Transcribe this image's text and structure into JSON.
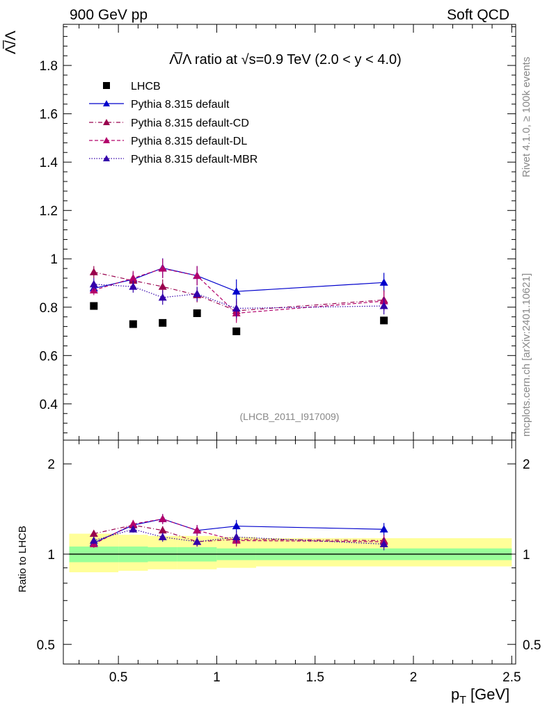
{
  "header": {
    "left": "900 GeV pp",
    "right": "Soft QCD"
  },
  "side_text": {
    "rivet": "Rivet 4.1.0, ≥ 100k events",
    "mcplots": "mcplots.cern.ch [arXiv:2401.10621]"
  },
  "colors": {
    "lhcb": "#000000",
    "default": "#0000cc",
    "cd": "#99004d",
    "dl": "#b3006b",
    "mbr": "#3300aa",
    "band_inner": "#99ff99",
    "band_outer": "#ffff99"
  },
  "chart_data": [
    {
      "type": "scatter",
      "title_prefix": "Λ̅/Λ ratio at √s=0.9 TeV (2.0 < y < 4.0)",
      "ylabel": "Λ̅/Λ",
      "watermark": "(LHCB_2011_I917009)",
      "xlim": [
        0.22,
        2.52
      ],
      "ylim": [
        0.25,
        1.97
      ],
      "yticks": [
        0.4,
        0.6,
        0.8,
        1.0,
        1.2,
        1.4,
        1.6,
        1.8
      ],
      "ytick_labels": [
        "0.4",
        "0.6",
        "0.8",
        "1",
        "1.2",
        "1.4",
        "1.6",
        "1.8"
      ],
      "x": [
        0.375,
        0.575,
        0.725,
        0.9,
        1.1,
        1.85
      ],
      "series": [
        {
          "name": "LHCB",
          "style": "data",
          "values": [
            0.805,
            0.73,
            0.735,
            0.775,
            0.7,
            0.745
          ]
        },
        {
          "name": "Pythia 8.315 default",
          "style": "solid",
          "values": [
            0.878,
            0.915,
            0.962,
            0.93,
            0.865,
            0.902
          ],
          "errors": [
            0.02,
            0.03,
            0.04,
            0.04,
            0.05,
            0.04
          ]
        },
        {
          "name": "Pythia 8.315 default-CD",
          "style": "dashdot",
          "values": [
            0.945,
            0.91,
            0.885,
            0.85,
            0.785,
            0.83
          ],
          "errors": [
            0.025,
            0.03,
            0.03,
            0.03,
            0.04,
            0.04
          ]
        },
        {
          "name": "Pythia 8.315 default-DL",
          "style": "dashed",
          "values": [
            0.87,
            0.92,
            0.96,
            0.93,
            0.775,
            0.825
          ],
          "errors": [
            0.02,
            0.03,
            0.04,
            0.04,
            0.04,
            0.04
          ]
        },
        {
          "name": "Pythia 8.315 default-MBR",
          "style": "dotted",
          "values": [
            0.895,
            0.885,
            0.84,
            0.855,
            0.795,
            0.805
          ],
          "errors": [
            0.025,
            0.025,
            0.03,
            0.03,
            0.04,
            0.035
          ]
        }
      ]
    },
    {
      "type": "scatter",
      "ylabel": "Ratio to LHCB",
      "xlabel": "p",
      "xlabel_sub": "T",
      "xlabel_unit": "[GeV]",
      "xlim": [
        0.22,
        2.52
      ],
      "ylim": [
        0.43,
        2.4
      ],
      "scale": "log",
      "xticks": [
        0.5,
        1.0,
        1.5,
        2.0,
        2.5
      ],
      "xtick_labels": [
        "0.5",
        "1",
        "1.5",
        "2",
        "2.5"
      ],
      "yticks": [
        0.5,
        1.0,
        2.0
      ],
      "ytick_labels": [
        "0.5",
        "1",
        "2"
      ],
      "band_edges": [
        0.25,
        0.5,
        0.65,
        0.8,
        1.0,
        1.2,
        2.5
      ],
      "band_inner": [
        [
          0.94,
          1.06
        ],
        [
          0.94,
          1.06
        ],
        [
          0.945,
          1.055
        ],
        [
          0.945,
          1.055
        ],
        [
          0.955,
          1.045
        ],
        [
          0.955,
          1.045
        ]
      ],
      "band_outer": [
        [
          0.87,
          1.17
        ],
        [
          0.88,
          1.16
        ],
        [
          0.89,
          1.15
        ],
        [
          0.89,
          1.15
        ],
        [
          0.9,
          1.14
        ],
        [
          0.91,
          1.13
        ]
      ],
      "x": [
        0.375,
        0.575,
        0.725,
        0.9,
        1.1,
        1.85
      ],
      "series": [
        {
          "name": "Pythia 8.315 default",
          "values": [
            1.09,
            1.25,
            1.31,
            1.2,
            1.24,
            1.21
          ],
          "errors": [
            0.03,
            0.04,
            0.05,
            0.05,
            0.06,
            0.06
          ]
        },
        {
          "name": "Pythia 8.315 default-CD",
          "values": [
            1.17,
            1.25,
            1.2,
            1.1,
            1.12,
            1.11
          ],
          "errors": [
            0.03,
            0.04,
            0.04,
            0.04,
            0.05,
            0.05
          ]
        },
        {
          "name": "Pythia 8.315 default-DL",
          "values": [
            1.08,
            1.26,
            1.31,
            1.2,
            1.11,
            1.1
          ],
          "errors": [
            0.03,
            0.04,
            0.05,
            0.05,
            0.05,
            0.05
          ]
        },
        {
          "name": "Pythia 8.315 default-MBR",
          "values": [
            1.11,
            1.21,
            1.14,
            1.1,
            1.14,
            1.08
          ],
          "errors": [
            0.03,
            0.03,
            0.04,
            0.04,
            0.05,
            0.05
          ]
        }
      ]
    }
  ]
}
